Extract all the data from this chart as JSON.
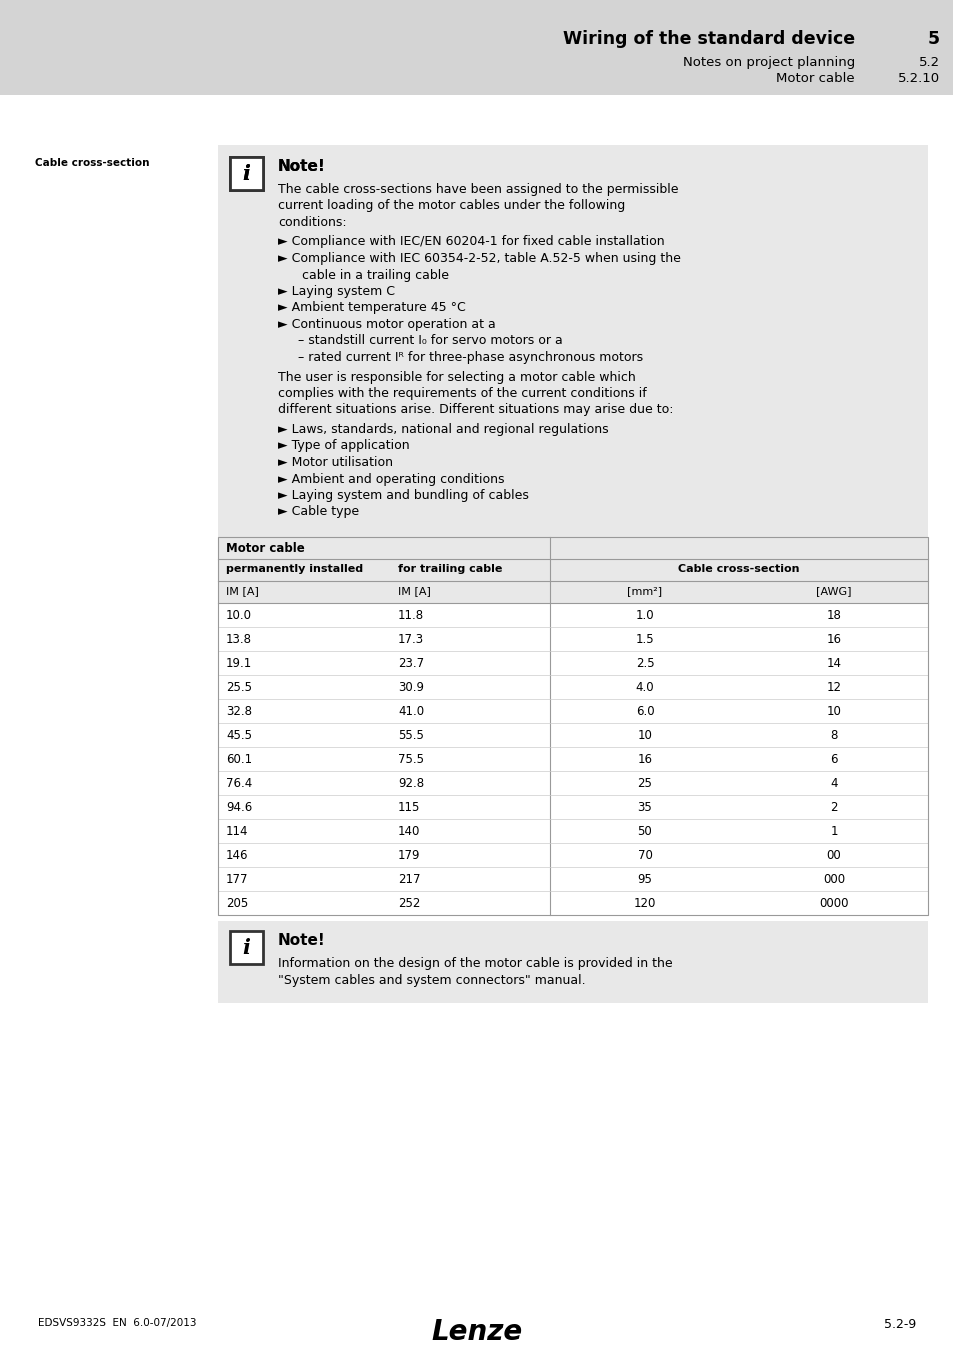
{
  "page_bg": "#ffffff",
  "header_bg": "#d4d4d4",
  "header_title": "Wiring of the standard device",
  "header_title_num": "5",
  "header_sub1": "Notes on project planning",
  "header_sub1_num": "5.2",
  "header_sub2": "Motor cable",
  "header_sub2_num": "5.2.10",
  "margin_label": "Cable cross-section",
  "note_bg": "#e8e8e8",
  "note_title": "Note!",
  "table_header_row0": "Motor cable",
  "table_header_row1_col1": "permanently installed",
  "table_header_row1_col2": "for trailing cable",
  "table_header_row1_col34": "Cable cross-section",
  "table_header_row2_col1": "IM [A]",
  "table_header_row2_col2": "IM [A]",
  "table_header_row2_col3": "[mm²]",
  "table_header_row2_col4": "[AWG]",
  "table_data": [
    [
      "10.0",
      "11.8",
      "1.0",
      "18"
    ],
    [
      "13.8",
      "17.3",
      "1.5",
      "16"
    ],
    [
      "19.1",
      "23.7",
      "2.5",
      "14"
    ],
    [
      "25.5",
      "30.9",
      "4.0",
      "12"
    ],
    [
      "32.8",
      "41.0",
      "6.0",
      "10"
    ],
    [
      "45.5",
      "55.5",
      "10",
      "8"
    ],
    [
      "60.1",
      "75.5",
      "16",
      "6"
    ],
    [
      "76.4",
      "92.8",
      "25",
      "4"
    ],
    [
      "94.6",
      "115",
      "35",
      "2"
    ],
    [
      "114",
      "140",
      "50",
      "1"
    ],
    [
      "146",
      "179",
      "70",
      "00"
    ],
    [
      "177",
      "217",
      "95",
      "000"
    ],
    [
      "205",
      "252",
      "120",
      "0000"
    ]
  ],
  "note2_title": "Note!",
  "note2_line1": "Information on the design of the motor cable is provided in the",
  "note2_line2": "\"System cables and system connectors\" manual.",
  "footer_left": "EDSVS9332S  EN  6.0-07/2013",
  "footer_center": "Lenze",
  "footer_right": "5.2-9"
}
